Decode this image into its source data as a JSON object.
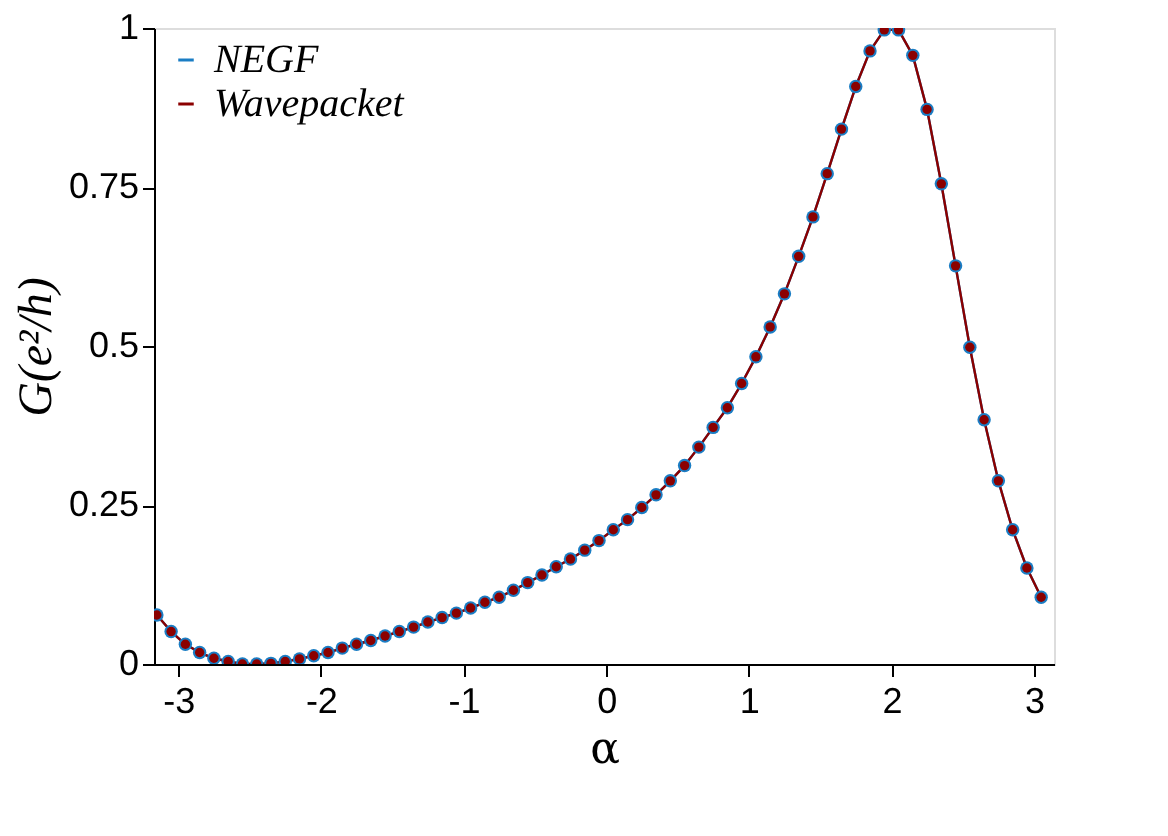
{
  "chart_data": {
    "type": "line",
    "xlabel": "α",
    "ylabel": "G(e²/h)",
    "x": [
      -3.15,
      -3.05,
      -2.95,
      -2.85,
      -2.75,
      -2.65,
      -2.55,
      -2.45,
      -2.35,
      -2.25,
      -2.15,
      -2.05,
      -1.95,
      -1.85,
      -1.75,
      -1.65,
      -1.55,
      -1.45,
      -1.35,
      -1.25,
      -1.15,
      -1.05,
      -0.95,
      -0.85,
      -0.75,
      -0.65,
      -0.55,
      -0.45,
      -0.35,
      -0.25,
      -0.15,
      -0.05,
      0.05,
      0.15,
      0.25,
      0.35,
      0.45,
      0.55,
      0.65,
      0.75,
      0.85,
      0.95,
      1.05,
      1.15,
      1.25,
      1.35,
      1.45,
      1.55,
      1.65,
      1.75,
      1.85,
      1.95,
      2.05,
      2.15,
      2.25,
      2.35,
      2.45,
      2.55,
      2.65,
      2.75,
      2.85,
      2.95,
      3.05
    ],
    "series": [
      {
        "name": "NEGF",
        "color": "#1a7dc4",
        "values": [
          0.077,
          0.051,
          0.031,
          0.018,
          0.009,
          0.004,
          0.0,
          0.0,
          0.001,
          0.004,
          0.008,
          0.013,
          0.018,
          0.025,
          0.031,
          0.037,
          0.044,
          0.051,
          0.058,
          0.066,
          0.073,
          0.08,
          0.088,
          0.097,
          0.105,
          0.116,
          0.128,
          0.14,
          0.153,
          0.165,
          0.179,
          0.194,
          0.211,
          0.227,
          0.246,
          0.266,
          0.288,
          0.312,
          0.341,
          0.372,
          0.403,
          0.441,
          0.483,
          0.53,
          0.582,
          0.641,
          0.703,
          0.771,
          0.841,
          0.908,
          0.964,
          0.997,
          0.997,
          0.957,
          0.872,
          0.755,
          0.626,
          0.498,
          0.384,
          0.288,
          0.211,
          0.151,
          0.105
        ]
      },
      {
        "name": "Wavepacket",
        "color": "#8b0000",
        "values": [
          0.077,
          0.051,
          0.031,
          0.018,
          0.009,
          0.004,
          0.0,
          0.0,
          0.001,
          0.004,
          0.008,
          0.013,
          0.018,
          0.025,
          0.031,
          0.037,
          0.044,
          0.051,
          0.058,
          0.066,
          0.073,
          0.08,
          0.088,
          0.097,
          0.105,
          0.116,
          0.128,
          0.14,
          0.153,
          0.165,
          0.179,
          0.194,
          0.211,
          0.227,
          0.246,
          0.266,
          0.288,
          0.312,
          0.341,
          0.372,
          0.403,
          0.441,
          0.483,
          0.53,
          0.582,
          0.641,
          0.703,
          0.771,
          0.841,
          0.908,
          0.964,
          0.997,
          0.997,
          0.957,
          0.872,
          0.755,
          0.626,
          0.498,
          0.384,
          0.288,
          0.211,
          0.151,
          0.105
        ]
      }
    ],
    "xlim": [
      -3.17,
      3.14
    ],
    "xticks": [
      -3,
      -2,
      -1,
      0,
      1,
      2,
      3
    ],
    "ylim": [
      0,
      1
    ],
    "yticks": [
      0,
      0.25,
      0.5,
      0.75,
      1
    ],
    "marker": "circle",
    "line_style": "solid",
    "grid": false,
    "legend": "top left"
  }
}
